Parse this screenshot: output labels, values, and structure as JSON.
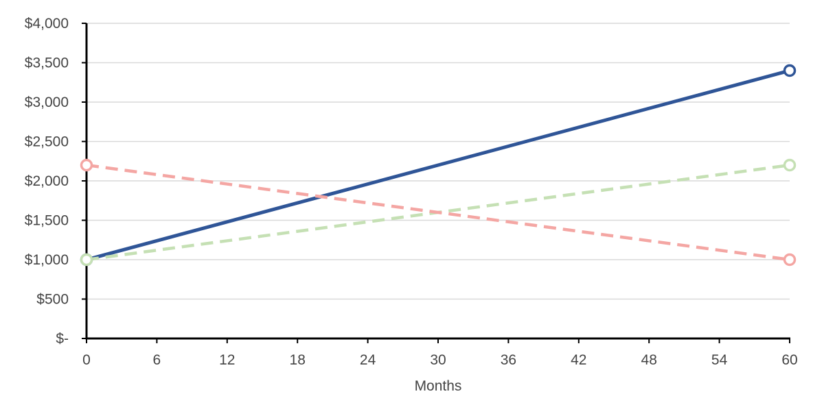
{
  "chart_data": {
    "type": "line",
    "title": "",
    "xlabel": "Months",
    "ylabel": "",
    "x": [
      0,
      60
    ],
    "xlim": [
      0,
      60
    ],
    "ylim": [
      0,
      4000
    ],
    "xticks": [
      0,
      6,
      12,
      18,
      24,
      30,
      36,
      42,
      48,
      54,
      60
    ],
    "xtick_labels": [
      "0",
      "6",
      "12",
      "18",
      "24",
      "30",
      "36",
      "42",
      "48",
      "54",
      "60"
    ],
    "yticks": [
      0,
      500,
      1000,
      1500,
      2000,
      2500,
      3000,
      3500,
      4000
    ],
    "ytick_labels": [
      "$-",
      "$500",
      "$1,000",
      "$1,500",
      "$2,000",
      "$2,500",
      "$3,000",
      "$3,500",
      "$4,000"
    ],
    "grid": "horizontal",
    "legend": "none",
    "series": [
      {
        "values": [
          1000,
          3400
        ],
        "color": "#2f5597",
        "style": "solid",
        "marker": "open-circle"
      },
      {
        "values": [
          1000,
          2200
        ],
        "color": "#c5e0b4",
        "style": "dashed",
        "marker": "open-circle"
      },
      {
        "values": [
          2200,
          1000
        ],
        "color": "#f4a6a3",
        "style": "dashed",
        "marker": "open-circle"
      }
    ]
  },
  "colors": {
    "grid": "#d9d9d9",
    "axis": "#000000",
    "text": "#444444"
  }
}
